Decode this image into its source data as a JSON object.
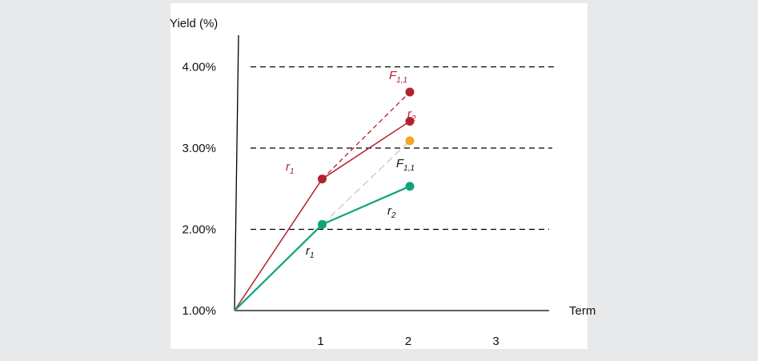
{
  "chart_data": {
    "type": "line",
    "title": "",
    "ylabel": "Yield (%)",
    "xlabel": "Term",
    "x_ticks": [
      "1",
      "2",
      "3"
    ],
    "y_ticks": [
      "1.00%",
      "2.00%",
      "3.00%",
      "4.00%"
    ],
    "xlim": [
      0,
      3.5
    ],
    "ylim": [
      1.0,
      4.05
    ],
    "gridlines_dashed": [
      2.0,
      3.0,
      4.0
    ],
    "colors": {
      "high": "#b5202e",
      "low": "#0ea47a",
      "forward_low": "#f5a623",
      "forward_low_line": "#c8c8c8",
      "axis": "#000000"
    },
    "series": [
      {
        "key": "high",
        "points": [
          {
            "x": 0,
            "y": 1.0,
            "marker": false
          },
          {
            "x": 1,
            "y": 2.62,
            "marker": true,
            "label_main": "r",
            "label_sub": "1"
          },
          {
            "x": 2,
            "y": 3.33,
            "marker": true,
            "label_main": "r",
            "label_sub": "2"
          }
        ]
      },
      {
        "key": "low",
        "points": [
          {
            "x": 0,
            "y": 1.0,
            "marker": false
          },
          {
            "x": 1,
            "y": 2.06,
            "marker": true,
            "label_main": "r",
            "label_sub": "1"
          },
          {
            "x": 2,
            "y": 2.53,
            "marker": true,
            "label_main": "r",
            "label_sub": "2"
          }
        ]
      }
    ],
    "forwards": [
      {
        "key": "high",
        "from_x": 1,
        "from_y": 2.62,
        "x": 2,
        "y": 3.69,
        "label_main": "F",
        "label_sub": "1,1"
      },
      {
        "key": "low",
        "from_x": 1,
        "from_y": 2.06,
        "x": 2,
        "y": 3.09,
        "label_main": "F",
        "label_sub": "1,1"
      }
    ]
  }
}
